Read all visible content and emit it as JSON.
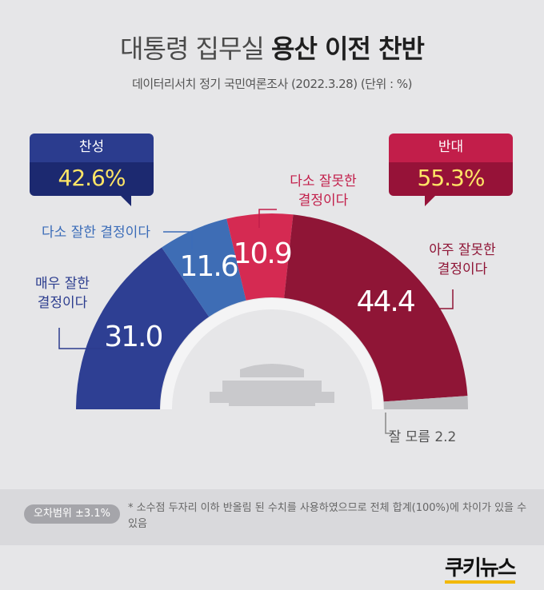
{
  "header": {
    "title_plain": "대통령 집무실",
    "title_bold": "용산 이전 찬반",
    "subtitle": "데이터리서치 정기 국민여론조사 (2022.3.28)  (단위 : %)"
  },
  "summary": {
    "support_label": "찬성",
    "support_value": "42.6%",
    "oppose_label": "반대",
    "oppose_value": "55.3%"
  },
  "chart_data": {
    "type": "pie",
    "title": "대통령 집무실 용산 이전 찬반",
    "unit": "%",
    "categories": [
      "매우 잘한 결정이다",
      "다소 잘한 결정이다",
      "다소 잘못한 결정이다",
      "아주 잘못한 결정이다",
      "잘 모름"
    ],
    "values": [
      31.0,
      11.6,
      10.9,
      44.4,
      2.2
    ],
    "value_labels": [
      "31.0",
      "11.6",
      "10.9",
      "44.4",
      "2.2"
    ],
    "callout_labels": [
      [
        "매우 잘한",
        "결정이다"
      ],
      [
        "다소 잘한 결정이다"
      ],
      [
        "다소 잘못한",
        "결정이다"
      ],
      [
        "아주 잘못한",
        "결정이다"
      ],
      [
        "잘 모름 2.2"
      ]
    ],
    "colors": [
      "#2e3f93",
      "#3e6db5",
      "#d52a52",
      "#8f1536",
      "#bcbcbf"
    ],
    "label_colors": [
      "#2b3c8e",
      "#3b6cb8",
      "#c21e4a",
      "#8f1536",
      "#555555"
    ],
    "style": "half-donut"
  },
  "footer": {
    "margin_of_error": "오차범위 ±3.1%",
    "footnote": "* 소수점 두자리 이하 반올림 된 수치를 사용하였으므로 전체 합계(100%)에 차이가 있을 수 있음",
    "brand": "쿠키뉴스"
  }
}
